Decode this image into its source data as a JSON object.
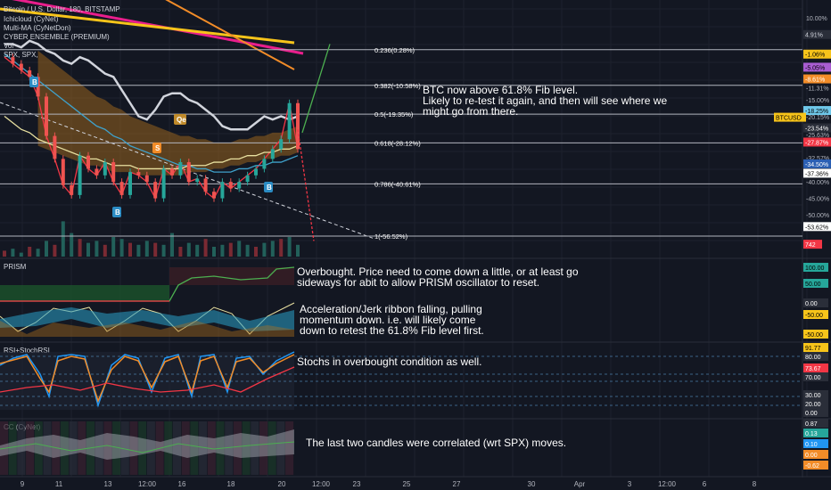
{
  "chart_data": {
    "type": "line",
    "title": "Bitcoin / U.S. Dollar, 180, BITSTAMP",
    "indicators_main": [
      "Ichicloud (CyNet)",
      "Multi-MA (CyNetDon)",
      "CYBER ENSEMBLE (PREMIUM)",
      "Vol",
      "SPX, SPX,"
    ],
    "fib_levels": [
      {
        "label": "0.236(0.28%)",
        "y": 0.28
      },
      {
        "label": "0.382(-10.58%)",
        "y": -10.58
      },
      {
        "label": "0.5(-19.35%)",
        "y": -19.35
      },
      {
        "label": "0.618(-28.12%)",
        "y": -28.12
      },
      {
        "label": "0.786(-40.61%)",
        "y": -40.61
      },
      {
        "label": "1(-56.52%)",
        "y": -56.52
      }
    ],
    "y_axis_ticks": [
      "10.00%",
      "5.00%",
      "-11.31%",
      "-15.00%",
      "-20.15%",
      "-25.63%",
      "-32.57%",
      "-40.00%",
      "-45.00%",
      "-50.00%"
    ],
    "x_ticks": [
      "9",
      "11",
      "13",
      "12:00",
      "16",
      "18",
      "20",
      "12:00",
      "23",
      "25",
      "27",
      "30",
      "Apr",
      "3",
      "12:00",
      "6",
      "8"
    ],
    "price_badges": [
      {
        "text": "4.91%",
        "color": "#d1d4dc",
        "bg": "#2a2e39",
        "y": 4.91
      },
      {
        "text": "-1.06%",
        "color": "#000000",
        "bg": "#f7c41a",
        "y": -1.06
      },
      {
        "text": "-5.05%",
        "color": "#000000",
        "bg": "#a95dd1",
        "y": -5.05
      },
      {
        "text": "-8.61%",
        "color": "#ffffff",
        "bg": "#f28c28",
        "y": -8.61
      },
      {
        "text": "-18.25%",
        "color": "#000000",
        "bg": "#6fc8ea",
        "y": -18.25
      },
      {
        "text": "BTCUSD",
        "color": "#000000",
        "bg": "#f7c41a",
        "y": -20.3
      },
      {
        "text": "-23.54%",
        "color": "#ffffff",
        "bg": "#2a2e39",
        "y": -23.54
      },
      {
        "text": "-27.87%",
        "color": "#ffffff",
        "bg": "#f23645",
        "y": -27.87
      },
      {
        "text": "-34.50%",
        "color": "#ffffff",
        "bg": "#2b5fb3",
        "y": -34.5
      },
      {
        "text": "-37.36%",
        "color": "#000000",
        "bg": "#ffffff",
        "y": -37.36
      },
      {
        "text": "-53.62%",
        "color": "#000000",
        "bg": "#ffffff",
        "y": -53.62
      },
      {
        "text": "742",
        "color": "#ffffff",
        "bg": "#f23645",
        "y": -59
      }
    ],
    "signals": [
      {
        "text": "B",
        "type": "buy"
      },
      {
        "text": "B",
        "type": "buy"
      },
      {
        "text": "B",
        "type": "buy"
      },
      {
        "text": "S",
        "type": "sell"
      },
      {
        "text": "Qe",
        "type": "tag"
      }
    ],
    "annotations": [
      "BTC now above 61.8% Fib level.\nLikely to re-test it again, and then will see where we\nmight go from there.",
      "Overbought. Price need to come down a little, or at least go\nsideways for abit to allow PRISM oscillator to reset.",
      "Acceleration/Jerk ribbon falling, pulling\nmomentum down. i.e. will likely come\ndown to retest the 61.8% Fib level first.",
      "Stochs in overbought condition as well.",
      "The last two candles were correlated (wrt SPX) moves."
    ],
    "panes": [
      {
        "name": "PRISM",
        "ticks": [
          "100.00",
          "50.00",
          "0.00",
          "-50.00",
          "-50.00"
        ]
      },
      {
        "name": "RSI+StochRSI",
        "ticks": [
          "91.77",
          "80.00",
          "73.67",
          "70.00",
          "30.00",
          "20.00",
          "0.00"
        ]
      },
      {
        "name": "CC (CyNet)",
        "ticks": [
          "0.87",
          "0.13",
          "0.10",
          "0.00",
          "-0.62"
        ]
      }
    ],
    "price_series": [
      {
        "name": "SPX",
        "color": "#d1d4dc",
        "values": [
          2,
          2,
          1,
          3,
          2,
          0,
          -1,
          -3,
          -4,
          -2,
          -3,
          -5,
          -7,
          -8,
          -12,
          -16,
          -20,
          -21,
          -18,
          -14,
          -13,
          -13,
          -15,
          -16,
          -18,
          -20,
          -23,
          -24,
          -24,
          -24,
          -22,
          -20,
          -21,
          -20,
          -21,
          -20
        ]
      },
      {
        "name": "BTCUSD",
        "color": "#f23645",
        "values": [
          -2,
          -4,
          -6,
          -8,
          -14,
          -26,
          -33,
          -41,
          -44,
          -32,
          -36,
          -38,
          -34,
          -40,
          -44,
          -37,
          -38,
          -40,
          -45,
          -36,
          -38,
          -34,
          -40,
          -39,
          -43,
          -45,
          -40,
          -42,
          -40,
          -38,
          -36,
          -33,
          -30,
          -27,
          -16,
          -30
        ]
      },
      {
        "name": "EMA",
        "color": "#3fa1cb",
        "values": [
          -1,
          -3,
          -5,
          -7,
          -9,
          -11,
          -13,
          -15,
          -17,
          -19,
          -21,
          -23,
          -24,
          -26,
          -27,
          -29,
          -30,
          -31,
          -32,
          -33,
          -34,
          -35,
          -35,
          -36,
          -36,
          -37,
          -37,
          -37,
          -36,
          -36,
          -35,
          -35,
          -34,
          -34,
          -33,
          -32
        ]
      },
      {
        "name": "SMA",
        "color": "#e8e0a0",
        "values": [
          -20,
          -22,
          -24,
          -25,
          -27,
          -28,
          -29,
          -30,
          -31,
          -32,
          -33,
          -33,
          -34,
          -35,
          -35,
          -35,
          -36,
          -36,
          -36,
          -36,
          -36,
          -36,
          -35,
          -35,
          -35,
          -34,
          -34,
          -33,
          -33,
          -32,
          -32,
          -31,
          -31,
          -30,
          -30,
          -29
        ]
      }
    ],
    "projection": {
      "color": "#4caf50",
      "values": [
        -25,
        2
      ]
    },
    "projection_down": {
      "color": "#f23645",
      "values": [
        -24,
        -58
      ]
    },
    "volume": [
      3,
      4,
      2,
      5,
      4,
      8,
      6,
      18,
      12,
      9,
      7,
      8,
      6,
      10,
      9,
      7,
      6,
      8,
      7,
      6,
      12,
      5,
      7,
      6,
      9,
      5,
      6,
      7,
      8,
      6,
      5,
      7,
      8,
      9,
      10,
      6
    ]
  }
}
